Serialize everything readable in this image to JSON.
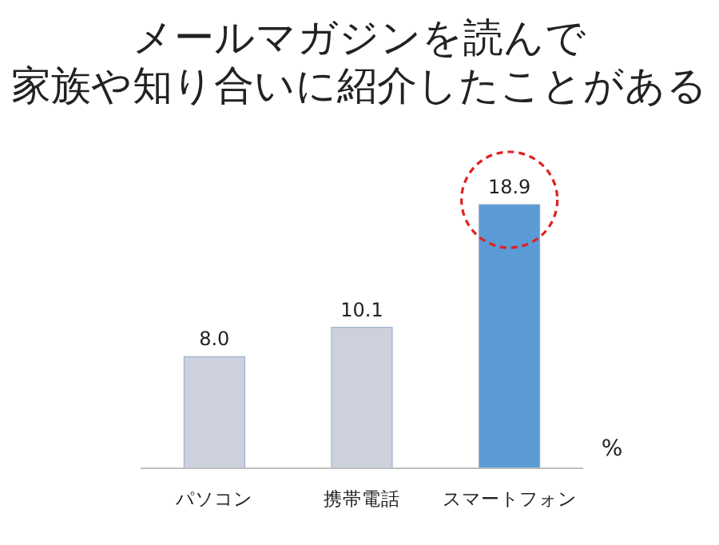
{
  "chart_data": {
    "type": "bar",
    "title": "メールマガジンを読んで",
    "subtitle": "家族や知り合いに紹介したことがある",
    "ylabel": "%",
    "categories": [
      "パソコン",
      "携帯電話",
      "スマートフォン"
    ],
    "values": [
      8.0,
      10.1,
      18.9
    ],
    "value_labels": [
      "8.0",
      "10.1",
      "18.9"
    ],
    "colors": [
      "#cdd1de",
      "#cdd1de",
      "#5b9bd5"
    ]
  }
}
